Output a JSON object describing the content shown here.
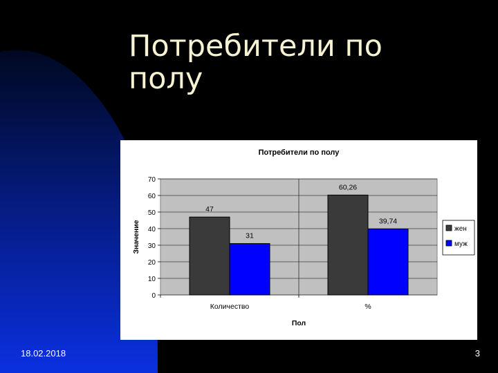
{
  "slide": {
    "title_line1": "Потребители по",
    "title_line2": "полу",
    "date": "18.02.2018",
    "page_number": "3",
    "colors": {
      "background": "#000000",
      "accent": "#0a2fd6",
      "title": "#f6f2d2"
    }
  },
  "chart_data": {
    "type": "bar",
    "title": "Потребители по полу",
    "xlabel": "Пол",
    "ylabel": "Значение",
    "categories": [
      "Количество",
      "%"
    ],
    "series": [
      {
        "name": "жен",
        "values": [
          47,
          60.26
        ],
        "labels": [
          "47",
          "60,26"
        ],
        "color": "#3a3a3a"
      },
      {
        "name": "муж",
        "values": [
          31,
          39.74
        ],
        "labels": [
          "31",
          "39,74"
        ],
        "color": "#0000ff"
      }
    ],
    "ylim": [
      0,
      70
    ],
    "yticks": [
      0,
      10,
      20,
      30,
      40,
      50,
      60,
      70
    ],
    "grid": true,
    "legend": "right",
    "plot_background": "#c0c0c0"
  }
}
